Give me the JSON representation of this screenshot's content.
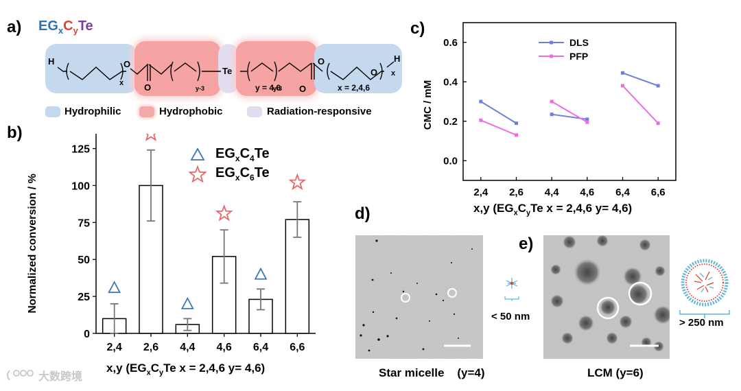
{
  "panel_a": {
    "label": "a)",
    "title_eg": "EG",
    "title_x": "x",
    "title_c": "C",
    "title_y": "y",
    "title_te": "Te",
    "chem": {
      "h_left": "H",
      "o1": "O",
      "x1": "x",
      "o2": "O",
      "carbonyl_o1": "O",
      "y3_left": "y-3",
      "te": "Te",
      "y3_right": "y-3",
      "carbonyl_o2": "O",
      "o3": "O",
      "o4": "O",
      "x2": "x",
      "h_right": "H",
      "y_values": "y = 4,6",
      "x_values": "x = 2,4,6"
    },
    "legend": [
      {
        "label": "Hydrophilic",
        "color": "#c5d9ee"
      },
      {
        "label": "Hydrophobic",
        "color": "#f6a9a9"
      },
      {
        "label": "Radiation-responsive",
        "color": "#e2dcf0"
      }
    ],
    "colors": {
      "eg": "#2e6fc4",
      "c": "#e0403a",
      "te": "#7a3fa0"
    }
  },
  "panel_b": {
    "label": "b)",
    "legend": [
      {
        "prefix": "EG",
        "sub_x": "x",
        "mid": "C",
        "num": "4",
        "suffix": "Te",
        "marker": "triangle",
        "color": "#3a78b8"
      },
      {
        "prefix": "EG",
        "sub_x": "x",
        "mid": "C",
        "num": "6",
        "suffix": "Te",
        "marker": "star",
        "color": "#e8686a"
      }
    ],
    "xlabel_prefix": "x,y (EG",
    "xlabel_sub_x": "x",
    "xlabel_c": "C",
    "xlabel_sub_y": "y",
    "xlabel_suffix": "Te x = 2,4,6 y= 4,6)"
  },
  "panel_c": {
    "label": "c)"
  },
  "panel_d": {
    "label": "d)",
    "caption": "Star micelle    (y=4)",
    "size_label": "< 50 nm"
  },
  "panel_e": {
    "label": "e)",
    "caption": "LCM (y=6)",
    "size_label": "> 250 nm"
  },
  "watermark": "大数跨境",
  "chart_data": [
    {
      "type": "bar",
      "id": "b",
      "categories": [
        "2,4",
        "2,6",
        "4,4",
        "4,6",
        "6,4",
        "6,6"
      ],
      "values": [
        10,
        100,
        6,
        52,
        23,
        77
      ],
      "errors": [
        10,
        24,
        4,
        18,
        7,
        12
      ],
      "marker_values": [
        31,
        135,
        20,
        81,
        40,
        102
      ],
      "marker_types": [
        "triangle",
        "star",
        "triangle",
        "star",
        "triangle",
        "star"
      ],
      "ylabel": "Normalized conversion / %",
      "yticks": [
        0,
        25,
        50,
        75,
        100,
        125
      ],
      "ylim": [
        0,
        135
      ]
    },
    {
      "type": "line",
      "id": "c",
      "categories": [
        "2,4",
        "2,6",
        "4,4",
        "4,6",
        "6,4",
        "6,6"
      ],
      "groups": [
        [
          0,
          1
        ],
        [
          2,
          3
        ],
        [
          4,
          5
        ]
      ],
      "series": [
        {
          "name": "DLS",
          "color": "#6f7fe0",
          "values": [
            0.3,
            0.19,
            0.235,
            0.21,
            0.445,
            0.38
          ]
        },
        {
          "name": "PFP",
          "color": "#f06ae8",
          "values": [
            0.205,
            0.13,
            0.3,
            0.195,
            0.38,
            0.19
          ]
        }
      ],
      "ylabel": "CMC / mM",
      "yticks": [
        "0.0",
        "0.2",
        "0.4",
        "0.6"
      ],
      "ylim": [
        -0.1,
        0.7
      ]
    }
  ]
}
